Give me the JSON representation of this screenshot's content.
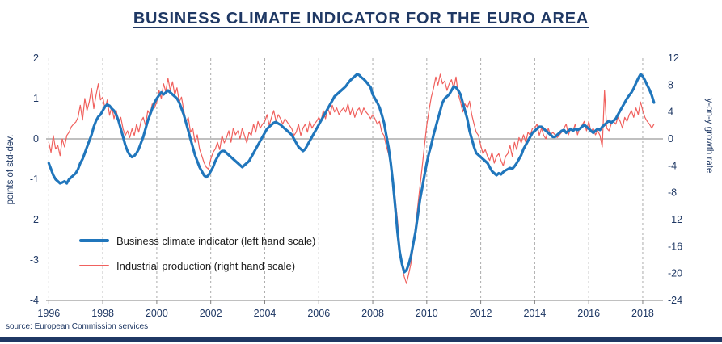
{
  "page": {
    "title": "BUSINESS CLIMATE INDICATOR FOR THE EURO AREA",
    "source": "source: European Commission services",
    "colors": {
      "navy": "#1F3864",
      "bci_blue": "#2076BC",
      "ip_red": "#F0615E",
      "grid_gray": "#ABABAB",
      "axis_gray": "#808080"
    }
  },
  "legend": {
    "items": [
      {
        "label": "Business climate indicator (left hand scale)",
        "color": "#2076BC"
      },
      {
        "label": "Industrial production (right hand scale)",
        "color": "#F0615E"
      }
    ]
  },
  "chart_data": {
    "type": "line",
    "title": "BUSINESS CLIMATE INDICATOR FOR THE EURO AREA",
    "x_start_year": 1996,
    "x_frequency_per_year": 12,
    "x_ticks": [
      1996,
      1998,
      2000,
      2002,
      2004,
      2006,
      2008,
      2010,
      2012,
      2014,
      2016,
      2018
    ],
    "grid": "vertical-dashed",
    "legend_position": "inside-lower-left",
    "left_axis": {
      "label": "points of std-dev.",
      "ticks": [
        2,
        1,
        0,
        -1,
        -2,
        -3,
        -4
      ],
      "range": [
        -4,
        2
      ]
    },
    "right_axis": {
      "label": "y-on-y growth rate",
      "ticks": [
        12,
        8,
        4,
        0,
        -4,
        -8,
        -12,
        -16,
        -20,
        -24
      ],
      "range": [
        -24,
        12
      ]
    },
    "series": [
      {
        "name": "Business climate indicator (left hand scale)",
        "axis": "left",
        "color": "#2076BC",
        "width": 3.2,
        "values": [
          -0.6,
          -0.75,
          -0.9,
          -1.0,
          -1.05,
          -1.1,
          -1.08,
          -1.05,
          -1.1,
          -1.0,
          -0.95,
          -0.9,
          -0.85,
          -0.75,
          -0.6,
          -0.5,
          -0.35,
          -0.2,
          -0.05,
          0.1,
          0.3,
          0.45,
          0.55,
          0.6,
          0.7,
          0.8,
          0.85,
          0.82,
          0.75,
          0.7,
          0.6,
          0.45,
          0.25,
          0.05,
          -0.15,
          -0.3,
          -0.4,
          -0.45,
          -0.42,
          -0.35,
          -0.25,
          -0.1,
          0.05,
          0.25,
          0.45,
          0.6,
          0.75,
          0.9,
          1.0,
          1.08,
          1.15,
          1.1,
          1.15,
          1.2,
          1.15,
          1.1,
          1.05,
          1.0,
          0.9,
          0.75,
          0.6,
          0.4,
          0.2,
          0.0,
          -0.2,
          -0.4,
          -0.55,
          -0.7,
          -0.8,
          -0.9,
          -0.95,
          -0.9,
          -0.8,
          -0.7,
          -0.55,
          -0.45,
          -0.35,
          -0.3,
          -0.3,
          -0.35,
          -0.4,
          -0.45,
          -0.5,
          -0.55,
          -0.6,
          -0.65,
          -0.7,
          -0.65,
          -0.6,
          -0.55,
          -0.45,
          -0.35,
          -0.25,
          -0.15,
          -0.05,
          0.05,
          0.15,
          0.25,
          0.3,
          0.35,
          0.4,
          0.42,
          0.38,
          0.35,
          0.3,
          0.25,
          0.2,
          0.15,
          0.1,
          0.0,
          -0.1,
          -0.2,
          -0.25,
          -0.3,
          -0.25,
          -0.15,
          -0.05,
          0.05,
          0.15,
          0.25,
          0.35,
          0.45,
          0.55,
          0.65,
          0.75,
          0.85,
          0.95,
          1.05,
          1.1,
          1.15,
          1.2,
          1.25,
          1.3,
          1.38,
          1.45,
          1.5,
          1.55,
          1.6,
          1.58,
          1.52,
          1.48,
          1.42,
          1.35,
          1.28,
          1.1,
          1.0,
          0.9,
          0.78,
          0.6,
          0.4,
          0.1,
          -0.2,
          -0.6,
          -1.1,
          -1.7,
          -2.3,
          -2.8,
          -3.1,
          -3.3,
          -3.25,
          -3.1,
          -2.9,
          -2.6,
          -2.3,
          -1.9,
          -1.5,
          -1.2,
          -0.9,
          -0.6,
          -0.35,
          -0.15,
          0.1,
          0.3,
          0.5,
          0.7,
          0.9,
          1.0,
          1.05,
          1.1,
          1.2,
          1.3,
          1.27,
          1.2,
          1.1,
          0.9,
          0.7,
          0.5,
          0.2,
          0.0,
          -0.2,
          -0.35,
          -0.4,
          -0.45,
          -0.5,
          -0.55,
          -0.6,
          -0.7,
          -0.8,
          -0.85,
          -0.9,
          -0.85,
          -0.88,
          -0.82,
          -0.78,
          -0.75,
          -0.72,
          -0.74,
          -0.68,
          -0.6,
          -0.5,
          -0.4,
          -0.25,
          -0.15,
          -0.05,
          0.05,
          0.15,
          0.2,
          0.25,
          0.3,
          0.3,
          0.25,
          0.2,
          0.15,
          0.1,
          0.05,
          0.05,
          0.1,
          0.15,
          0.2,
          0.22,
          0.15,
          0.2,
          0.25,
          0.2,
          0.25,
          0.22,
          0.25,
          0.3,
          0.35,
          0.3,
          0.25,
          0.2,
          0.15,
          0.2,
          0.25,
          0.22,
          0.3,
          0.35,
          0.4,
          0.45,
          0.4,
          0.45,
          0.5,
          0.6,
          0.7,
          0.8,
          0.9,
          1.0,
          1.08,
          1.15,
          1.25,
          1.38,
          1.5,
          1.6,
          1.55,
          1.45,
          1.33,
          1.22,
          1.08,
          0.9
        ]
      },
      {
        "name": "Industrial production (right hand scale)",
        "axis": "right",
        "color": "#F0615E",
        "width": 1.2,
        "values": [
          -0.5,
          -2.0,
          0.5,
          -1.5,
          -1.0,
          -2.5,
          0.0,
          -1.2,
          0.5,
          1.0,
          1.8,
          2.2,
          2.5,
          3.2,
          5.0,
          2.8,
          6.0,
          4.2,
          5.5,
          7.5,
          4.5,
          6.5,
          8.2,
          5.8,
          6.2,
          4.5,
          5.8,
          3.5,
          4.8,
          3.0,
          4.2,
          2.5,
          3.2,
          1.5,
          0.5,
          1.2,
          0.2,
          1.5,
          0.5,
          2.2,
          1.0,
          2.6,
          3.2,
          2.0,
          4.2,
          3.6,
          5.2,
          4.6,
          5.5,
          7.2,
          6.0,
          8.2,
          7.0,
          9.0,
          7.2,
          8.5,
          6.5,
          7.6,
          5.5,
          6.2,
          4.2,
          2.5,
          3.2,
          1.0,
          1.6,
          -0.5,
          0.6,
          -1.5,
          -2.5,
          -3.5,
          -4.2,
          -4.5,
          -3.0,
          -2.0,
          -1.5,
          -0.5,
          -1.6,
          0.5,
          -0.6,
          0.2,
          1.2,
          -0.5,
          1.6,
          0.6,
          1.2,
          0.0,
          1.6,
          0.5,
          -0.6,
          1.0,
          0.5,
          2.2,
          1.0,
          2.6,
          1.6,
          2.2,
          2.6,
          3.6,
          2.0,
          3.2,
          4.2,
          2.6,
          3.6,
          3.0,
          2.2,
          3.0,
          2.5,
          2.0,
          1.5,
          0.5,
          1.0,
          2.2,
          0.5,
          1.6,
          2.2,
          1.0,
          2.6,
          1.6,
          2.2,
          2.6,
          3.2,
          2.6,
          4.2,
          3.0,
          4.6,
          3.6,
          5.0,
          4.0,
          4.6,
          3.6,
          4.2,
          4.6,
          4.0,
          5.2,
          3.6,
          4.6,
          3.2,
          4.2,
          4.6,
          3.6,
          4.6,
          4.0,
          3.6,
          3.0,
          3.6,
          3.0,
          2.2,
          2.6,
          1.0,
          0.5,
          -1.0,
          -2.2,
          -3.6,
          -6.0,
          -9.0,
          -12.0,
          -16.0,
          -19.0,
          -20.5,
          -21.5,
          -20.0,
          -18.5,
          -16.0,
          -13.0,
          -10.0,
          -7.0,
          -4.0,
          -1.0,
          2.0,
          4.2,
          6.2,
          7.5,
          9.2,
          8.0,
          9.6,
          8.2,
          8.6,
          7.2,
          8.2,
          8.8,
          7.5,
          9.2,
          6.6,
          5.5,
          4.0,
          5.2,
          4.6,
          5.6,
          3.6,
          2.2,
          1.0,
          0.5,
          -1.0,
          -2.2,
          -1.6,
          -2.6,
          -3.2,
          -2.0,
          -3.6,
          -2.6,
          -2.2,
          -3.2,
          -4.0,
          -2.6,
          -2.2,
          -1.0,
          -2.6,
          -0.5,
          -1.6,
          0.2,
          -0.6,
          0.6,
          -0.5,
          1.0,
          0.5,
          1.6,
          1.6,
          2.2,
          0.5,
          1.6,
          0.5,
          0.0,
          1.6,
          0.5,
          1.0,
          0.6,
          0.2,
          0.6,
          1.0,
          1.6,
          2.2,
          0.6,
          1.6,
          1.2,
          2.2,
          0.6,
          1.6,
          2.0,
          2.6,
          1.2,
          2.6,
          1.0,
          1.6,
          0.6,
          1.2,
          0.5,
          -1.2,
          7.2,
          1.6,
          1.2,
          2.2,
          2.6,
          2.2,
          3.2,
          2.6,
          1.6,
          3.2,
          2.6,
          3.6,
          4.2,
          3.2,
          4.6,
          3.6,
          5.5,
          4.2,
          3.2,
          2.6,
          2.2,
          1.6,
          2.2
        ]
      }
    ]
  }
}
